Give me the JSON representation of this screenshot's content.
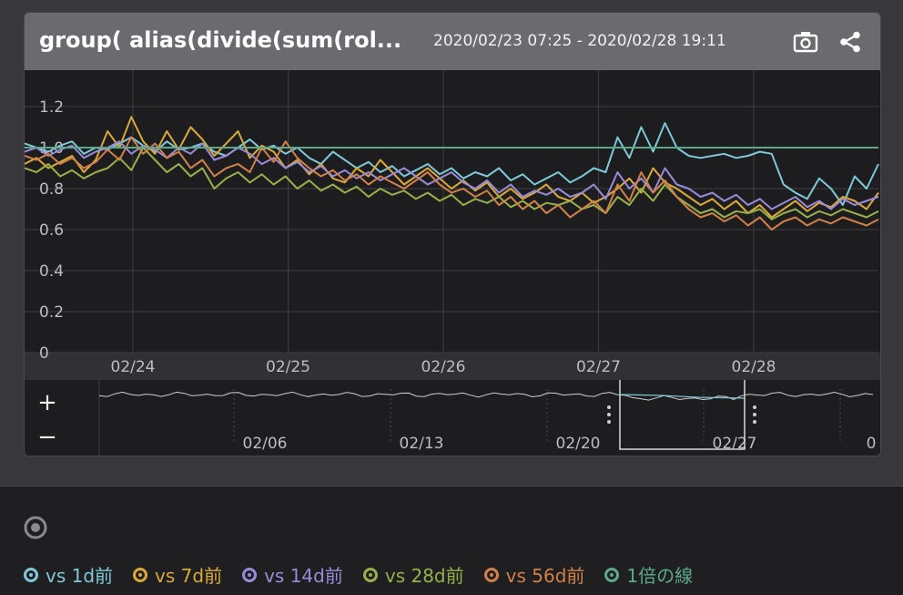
{
  "panel": {
    "title": "group( alias(divide(sum(rol...",
    "time_range": "2020/02/23 07:25 - 2020/02/28 19:11",
    "camera_icon": "camera-icon",
    "share_icon": "share-icon"
  },
  "navigator": {
    "zoom_in": "+",
    "zoom_out": "−",
    "ticks": [
      "02/06",
      "02/13",
      "02/20",
      "02/27",
      "0"
    ]
  },
  "legend": {
    "items": [
      {
        "label": "vs 1d前",
        "color": "#7ec8d8"
      },
      {
        "label": "vs 7d前",
        "color": "#d9a93a"
      },
      {
        "label": "vs 14d前",
        "color": "#9a8ad8"
      },
      {
        "label": "vs 28d前",
        "color": "#98b04a"
      },
      {
        "label": "vs 56d前",
        "color": "#d0804a"
      },
      {
        "label": "1倍の線",
        "color": "#5ea88a"
      }
    ]
  },
  "chart_data": {
    "type": "line",
    "x_ticks": [
      "02/24",
      "02/25",
      "02/26",
      "02/27",
      "02/28"
    ],
    "y_ticks": [
      "0",
      "0.2",
      "0.4",
      "0.6",
      "0.8",
      "1.0",
      "1.2"
    ],
    "ylim": [
      0,
      1.3
    ],
    "grid": true,
    "series": [
      {
        "name": "vs 1d前",
        "color": "#7ec8d8",
        "values": [
          1.02,
          1.0,
          0.98,
          1.01,
          1.03,
          0.97,
          1.0,
          0.99,
          1.02,
          1.05,
          1.01,
          0.98,
          1.03,
          0.99,
          1.0,
          1.02,
          0.98,
          0.96,
          1.0,
          1.04,
          0.99,
          1.01,
          0.97,
          1.0,
          0.95,
          0.92,
          0.98,
          0.94,
          0.9,
          0.93,
          0.88,
          0.91,
          0.86,
          0.89,
          0.92,
          0.87,
          0.9,
          0.85,
          0.88,
          0.86,
          0.9,
          0.84,
          0.87,
          0.82,
          0.85,
          0.88,
          0.83,
          0.86,
          0.9,
          0.88,
          1.05,
          0.95,
          1.1,
          0.98,
          1.12,
          1.0,
          0.96,
          0.95,
          0.96,
          0.97,
          0.95,
          0.96,
          0.98,
          0.97,
          0.82,
          0.78,
          0.75,
          0.85,
          0.8,
          0.72,
          0.86,
          0.8,
          0.92
        ]
      },
      {
        "name": "vs 7d前",
        "color": "#d9a93a",
        "values": [
          0.92,
          0.95,
          0.9,
          0.93,
          0.96,
          0.88,
          0.94,
          1.08,
          1.0,
          1.15,
          1.03,
          0.97,
          1.08,
          0.99,
          1.1,
          1.04,
          0.96,
          1.02,
          1.08,
          0.95,
          1.01,
          0.98,
          0.9,
          0.94,
          0.87,
          0.92,
          0.85,
          0.83,
          0.9,
          0.86,
          0.94,
          0.88,
          0.82,
          0.86,
          0.9,
          0.85,
          0.8,
          0.84,
          0.79,
          0.83,
          0.76,
          0.8,
          0.75,
          0.78,
          0.82,
          0.76,
          0.74,
          0.78,
          0.73,
          0.76,
          0.8,
          0.85,
          0.78,
          0.9,
          0.83,
          0.8,
          0.76,
          0.72,
          0.75,
          0.7,
          0.74,
          0.68,
          0.72,
          0.66,
          0.7,
          0.74,
          0.69,
          0.73,
          0.71,
          0.76,
          0.74,
          0.7,
          0.78
        ]
      },
      {
        "name": "vs 14d前",
        "color": "#9a8ad8",
        "values": [
          0.98,
          1.0,
          0.96,
          0.99,
          1.01,
          0.95,
          0.98,
          1.0,
          1.03,
          0.97,
          1.01,
          0.99,
          0.95,
          1.0,
          0.97,
          1.02,
          0.94,
          0.96,
          1.0,
          0.97,
          0.92,
          0.95,
          0.9,
          0.93,
          0.88,
          0.91,
          0.86,
          0.89,
          0.85,
          0.88,
          0.84,
          0.87,
          0.9,
          0.86,
          0.82,
          0.85,
          0.88,
          0.83,
          0.8,
          0.84,
          0.78,
          0.82,
          0.76,
          0.79,
          0.77,
          0.8,
          0.76,
          0.78,
          0.82,
          0.75,
          0.88,
          0.8,
          0.85,
          0.78,
          0.9,
          0.82,
          0.8,
          0.76,
          0.78,
          0.74,
          0.77,
          0.72,
          0.75,
          0.7,
          0.73,
          0.76,
          0.71,
          0.74,
          0.7,
          0.75,
          0.72,
          0.74,
          0.76
        ]
      },
      {
        "name": "vs 28d前",
        "color": "#98b04a",
        "values": [
          0.9,
          0.88,
          0.92,
          0.86,
          0.89,
          0.85,
          0.88,
          0.9,
          0.95,
          0.89,
          1.0,
          0.94,
          0.88,
          0.92,
          0.86,
          0.9,
          0.8,
          0.85,
          0.88,
          0.83,
          0.87,
          0.82,
          0.86,
          0.8,
          0.84,
          0.79,
          0.82,
          0.78,
          0.81,
          0.76,
          0.8,
          0.77,
          0.79,
          0.75,
          0.78,
          0.74,
          0.77,
          0.72,
          0.75,
          0.73,
          0.76,
          0.71,
          0.74,
          0.7,
          0.73,
          0.72,
          0.74,
          0.7,
          0.72,
          0.68,
          0.76,
          0.72,
          0.8,
          0.74,
          0.82,
          0.76,
          0.72,
          0.68,
          0.7,
          0.66,
          0.69,
          0.68,
          0.7,
          0.65,
          0.68,
          0.7,
          0.66,
          0.69,
          0.67,
          0.7,
          0.68,
          0.66,
          0.69
        ]
      },
      {
        "name": "vs 56d前",
        "color": "#d0804a",
        "values": [
          0.96,
          0.94,
          0.97,
          0.92,
          0.95,
          0.9,
          0.93,
          0.99,
          0.94,
          1.05,
          0.97,
          1.02,
          0.95,
          0.98,
          0.9,
          0.94,
          0.86,
          0.9,
          0.92,
          0.88,
          1.0,
          0.93,
          1.03,
          0.95,
          0.9,
          0.86,
          0.89,
          0.84,
          0.87,
          0.82,
          0.86,
          0.83,
          0.8,
          0.84,
          0.88,
          0.82,
          0.78,
          0.8,
          0.76,
          0.79,
          0.72,
          0.76,
          0.7,
          0.74,
          0.68,
          0.72,
          0.66,
          0.7,
          0.74,
          0.68,
          0.82,
          0.74,
          0.88,
          0.78,
          0.84,
          0.76,
          0.7,
          0.66,
          0.68,
          0.64,
          0.67,
          0.62,
          0.66,
          0.6,
          0.64,
          0.66,
          0.62,
          0.65,
          0.63,
          0.66,
          0.64,
          0.62,
          0.65
        ]
      },
      {
        "name": "1倍の線",
        "color": "#5ea88a",
        "values": [
          1.0,
          1.0
        ]
      }
    ]
  }
}
